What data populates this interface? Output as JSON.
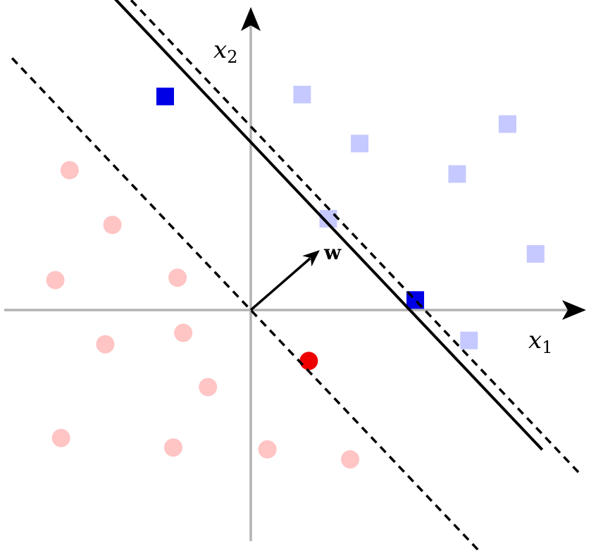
{
  "labels": {
    "x1_main": "x",
    "x1_sub": "1",
    "x2_main": "x",
    "x2_sub": "2",
    "w": "w"
  },
  "colors": {
    "axis": "#b3b3b3",
    "class_positive": "#c5c9ff",
    "support_positive": "#0000e6",
    "class_negative": "#ffc4c4",
    "support_negative": "#ee0000",
    "lines": "#000000"
  },
  "points": {
    "positive": [
      [
        1.08,
        4.53
      ],
      [
        2.29,
        3.5
      ],
      [
        4.34,
        2.86
      ],
      [
        5.4,
        3.91
      ],
      [
        1.63,
        1.92
      ],
      [
        5.99,
        1.18
      ],
      [
        4.59,
        -0.64
      ]
    ],
    "positive_support": [
      [
        -1.8,
        4.49
      ],
      [
        3.46,
        0.21
      ]
    ],
    "negative": [
      [
        -3.81,
        2.94
      ],
      [
        -2.91,
        1.79
      ],
      [
        -4.11,
        0.63
      ],
      [
        -1.54,
        0.68
      ],
      [
        -3.06,
        -0.72
      ],
      [
        -1.42,
        -0.48
      ],
      [
        -0.9,
        -1.62
      ],
      [
        -3.99,
        -2.69
      ],
      [
        -1.63,
        -2.89
      ],
      [
        0.35,
        -2.93
      ],
      [
        2.09,
        -3.14
      ]
    ],
    "negative_support": [
      [
        1.22,
        -1.07
      ]
    ]
  },
  "lines": {
    "slope": -1.055,
    "hyperplane_intercept": 3.53,
    "upper_margin_intercept": 3.86,
    "lower_margin_intercept": 0.0
  },
  "w_vector": [
    1.45,
    1.26
  ]
}
